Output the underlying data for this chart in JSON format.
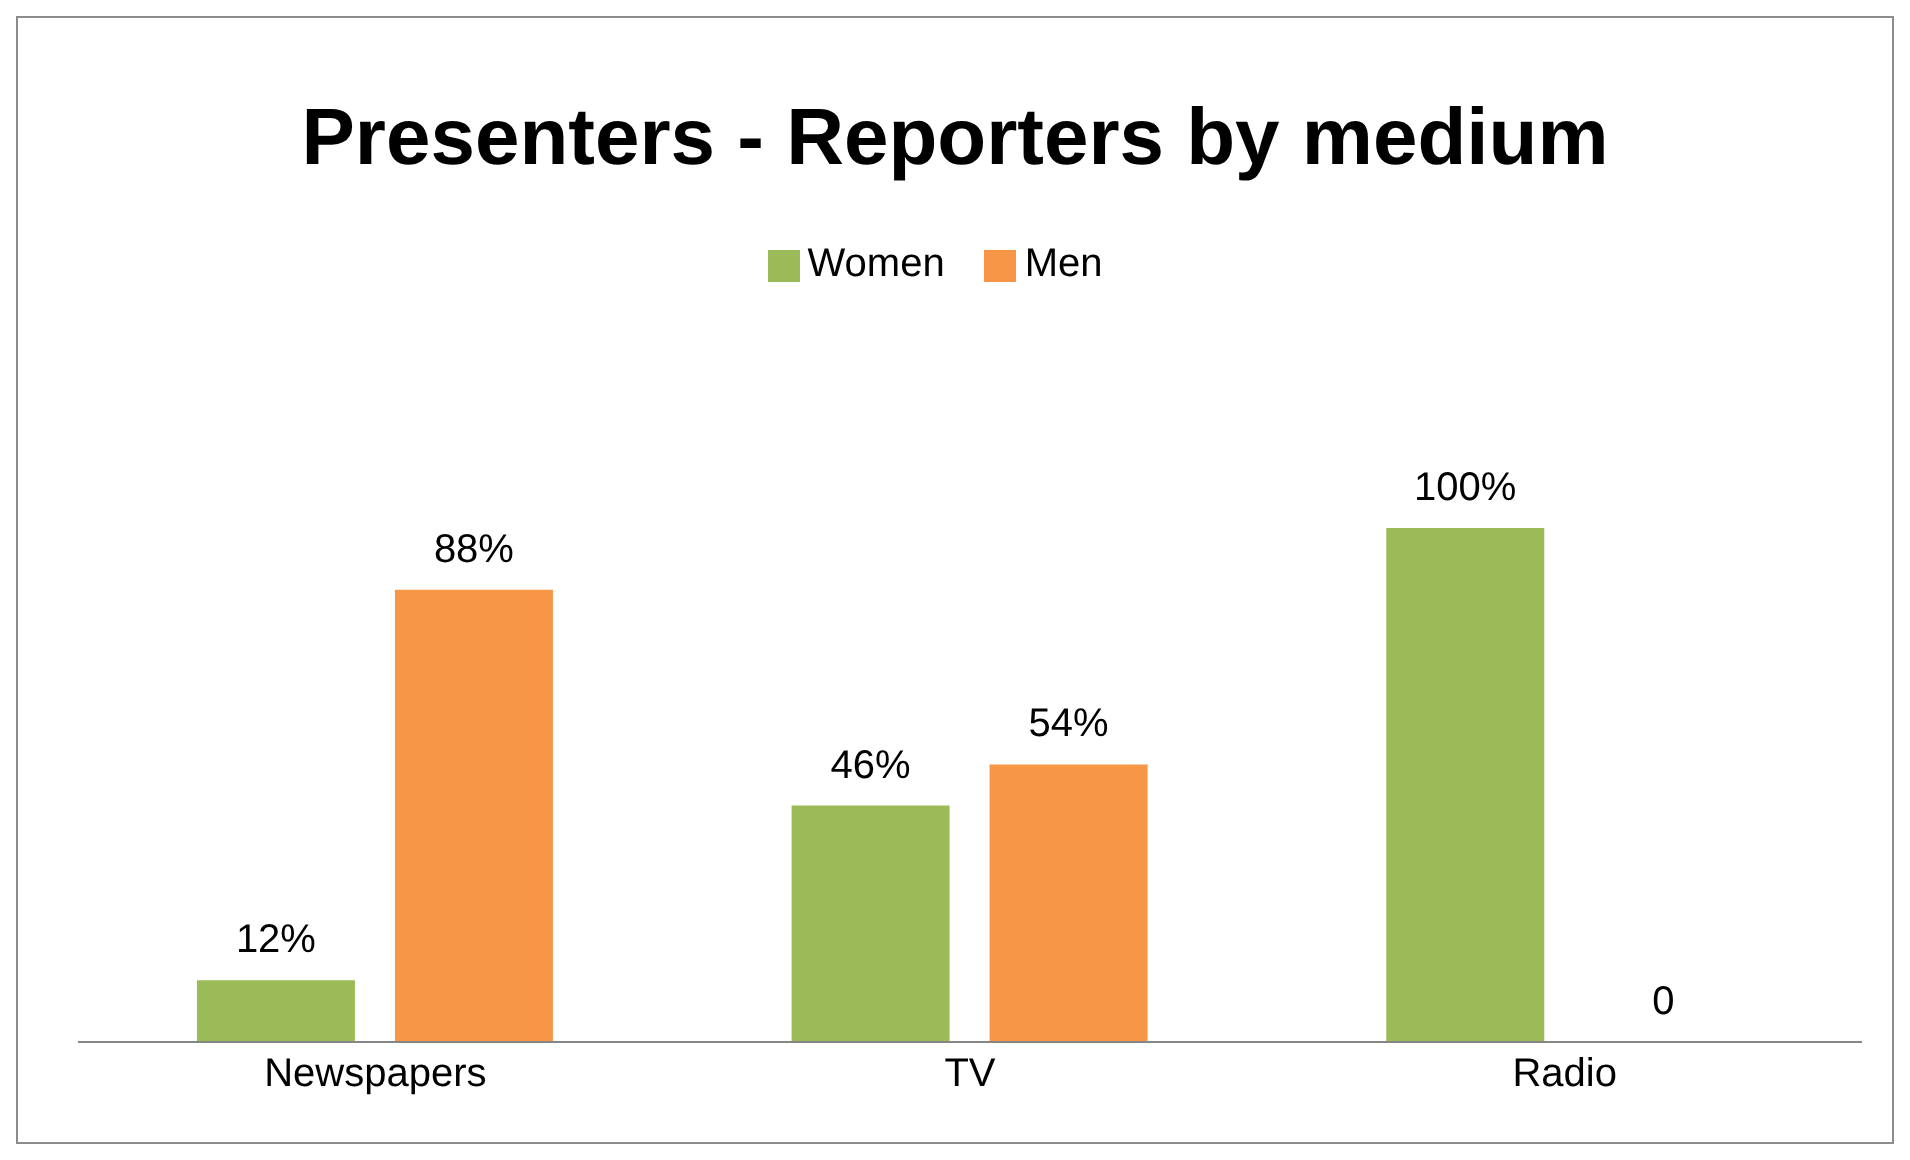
{
  "chart_data": {
    "type": "bar",
    "title": "Presenters - Reporters by medium",
    "categories": [
      "Newspapers",
      "TV",
      "Radio"
    ],
    "series": [
      {
        "name": "Women",
        "color": "#9bbb59",
        "values": [
          12,
          46,
          100
        ],
        "value_labels": [
          "12%",
          "46%",
          "100%"
        ]
      },
      {
        "name": "Men",
        "color": "#f79646",
        "values": [
          88,
          54,
          0
        ],
        "value_labels": [
          "88%",
          "54%",
          "0"
        ]
      }
    ],
    "legend": "top"
  }
}
